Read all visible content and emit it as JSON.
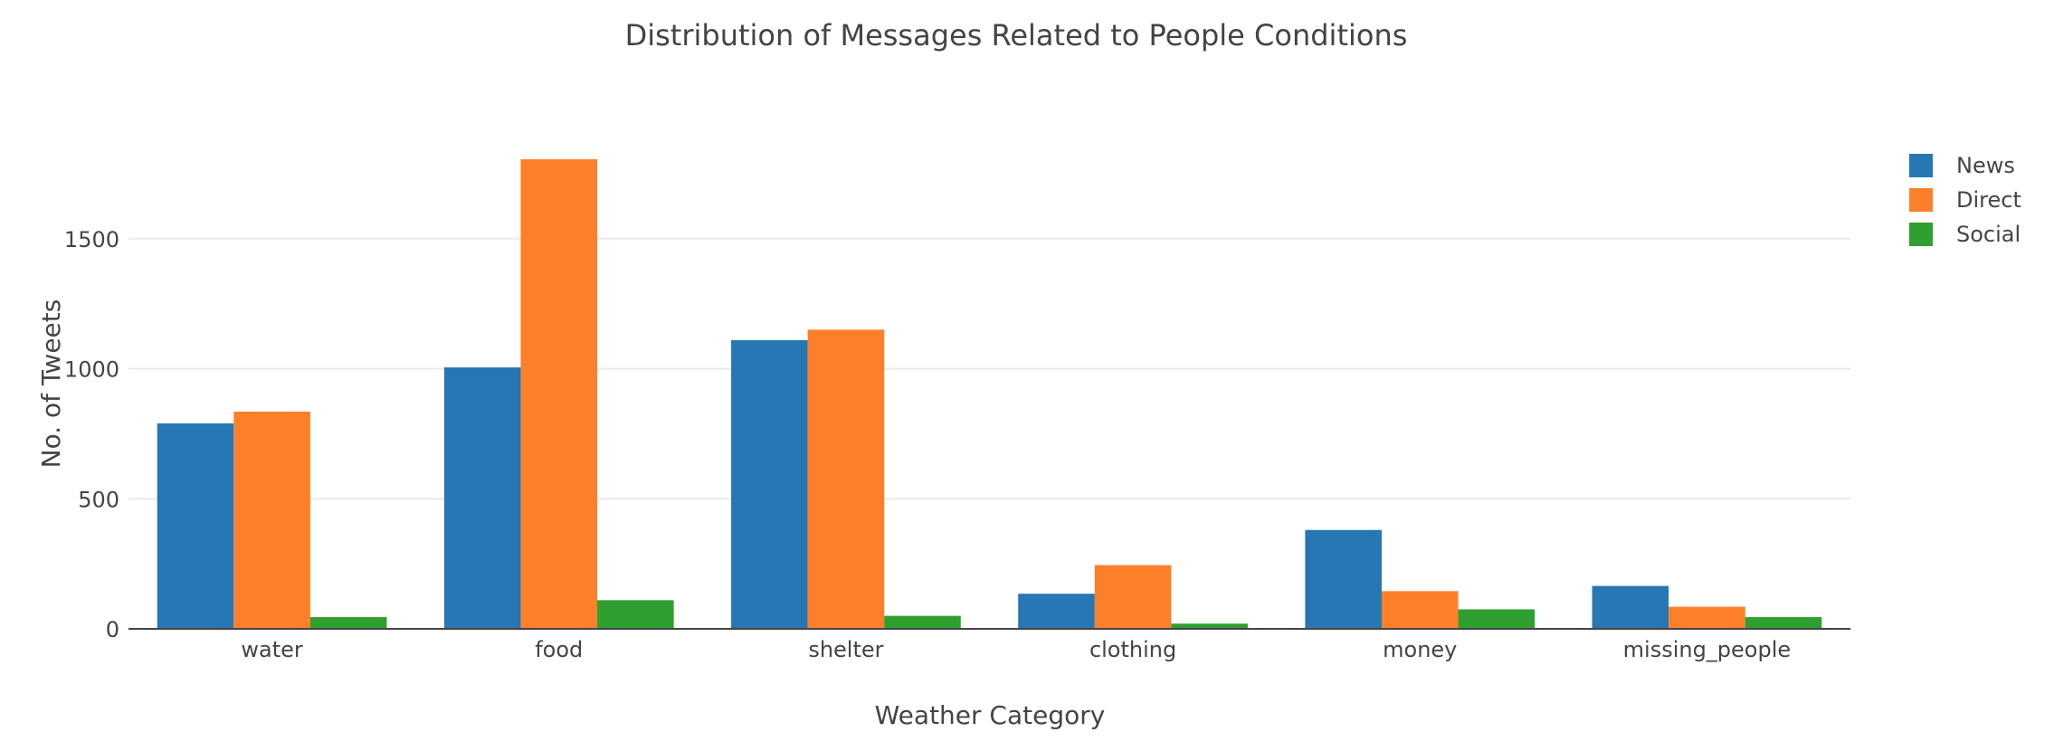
{
  "chart_data": {
    "type": "bar",
    "title": "Distribution of Messages Related to People Conditions",
    "xlabel": "Weather Category",
    "ylabel": "No. of Tweets",
    "categories": [
      "water",
      "food",
      "shelter",
      "clothing",
      "money",
      "missing_people"
    ],
    "series": [
      {
        "name": "News",
        "color": "#2677b4",
        "values": [
          790,
          1005,
          1110,
          135,
          380,
          165
        ]
      },
      {
        "name": "Direct",
        "color": "#fe7f2a",
        "values": [
          835,
          1805,
          1150,
          245,
          145,
          85
        ]
      },
      {
        "name": "Social",
        "color": "#2f9f2f",
        "values": [
          45,
          110,
          50,
          20,
          75,
          45
        ]
      }
    ],
    "ylim": [
      0,
      2000
    ],
    "yticks": [
      0,
      500,
      1000,
      1500
    ],
    "grid": true,
    "legend_position": "top-right",
    "colors": {
      "grid": "#e9e9e9",
      "axis": "#444444",
      "text": "#444444"
    }
  }
}
